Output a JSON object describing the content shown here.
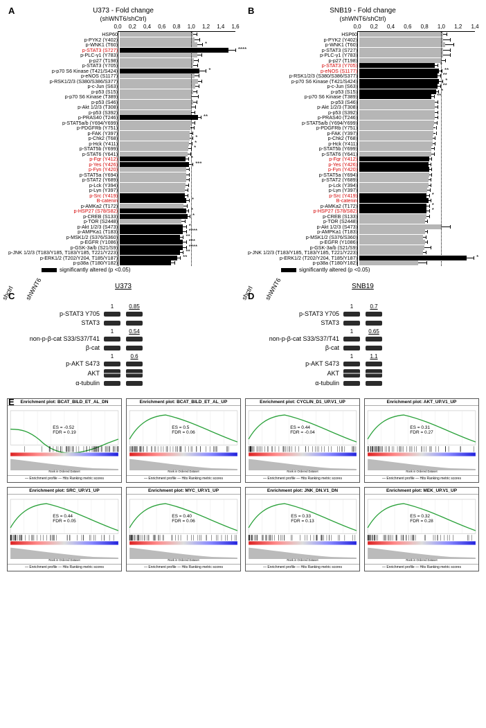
{
  "panel_labels": {
    "A": "A",
    "B": "B",
    "C": "C",
    "D": "D",
    "E": "E"
  },
  "chartA": {
    "title": "U373 - Fold change",
    "subtitle": "(shWNT6/shCtrl)",
    "xmax": 1.6,
    "xticks": [
      0.0,
      0.2,
      0.4,
      0.6,
      0.8,
      1.0,
      1.2,
      1.4,
      1.6
    ],
    "xtick_labels": [
      "0,0",
      "0,2",
      "0,4",
      "0,6",
      "0,8",
      "1,0",
      "1,2",
      "1,4",
      "1,6"
    ],
    "guideline_at": 1.0,
    "colors": {
      "sig": "#000000",
      "nonsig": "#b6b6b6"
    },
    "legend": "significantly altered (p <0.05)"
  },
  "chartB": {
    "title": "SNB19 - Fold change",
    "subtitle": "(shWNT6/shCtrl)",
    "xmax": 1.4,
    "xticks": [
      0.0,
      0.2,
      0.4,
      0.6,
      0.8,
      1.0,
      1.2,
      1.4
    ],
    "xtick_labels": [
      "0,0",
      "0,2",
      "0,4",
      "0,6",
      "0,8",
      "1,0",
      "1,2",
      "1,4"
    ],
    "guideline_at": 1.0,
    "colors": {
      "sig": "#000000",
      "nonsig": "#b6b6b6"
    },
    "legend": "significantly altered (p <0.05)"
  },
  "barsA": [
    {
      "label": "HSP60",
      "v": 1.0,
      "e": 0.04,
      "sig": false,
      "stars": ""
    },
    {
      "label": "p-PYK2 (Y402)",
      "v": 1.02,
      "e": 0.06,
      "sig": false,
      "stars": ""
    },
    {
      "label": "p-WNK1 (T60)",
      "v": 1.05,
      "e": 0.07,
      "sig": false,
      "stars": "*"
    },
    {
      "label": "p-STAT3 (S727)",
      "v": 1.48,
      "e": 0.09,
      "sig": true,
      "stars": "****",
      "red": true
    },
    {
      "label": "p-PLC-γ1 (Y783)",
      "v": 1.05,
      "e": 0.06,
      "sig": false,
      "stars": ""
    },
    {
      "label": "p-p27 (T198)",
      "v": 1.01,
      "e": 0.05,
      "sig": false,
      "stars": ""
    },
    {
      "label": "p-STAT3 (Y705)",
      "v": 1.0,
      "e": 0.05,
      "sig": false,
      "stars": ""
    },
    {
      "label": "p-p70 S6 Kinase (T421/S424)",
      "v": 1.08,
      "e": 0.09,
      "sig": true,
      "stars": "*"
    },
    {
      "label": "p-eNOS (S1177)",
      "v": 1.02,
      "e": 0.05,
      "sig": false,
      "stars": ""
    },
    {
      "label": "p-RSK1/2/3 (S380/S386/S377)",
      "v": 1.06,
      "e": 0.05,
      "sig": false,
      "stars": ""
    },
    {
      "label": "p-c-Jun (S63)",
      "v": 1.03,
      "e": 0.04,
      "sig": false,
      "stars": ""
    },
    {
      "label": "p-p53 (S15)",
      "v": 1.0,
      "e": 0.04,
      "sig": false,
      "stars": ""
    },
    {
      "label": "p-p70 S6 Kinase (T389)",
      "v": 0.98,
      "e": 0.08,
      "sig": false,
      "stars": ""
    },
    {
      "label": "p-p53 (S46)",
      "v": 1.0,
      "e": 0.04,
      "sig": false,
      "stars": ""
    },
    {
      "label": "p-Akt 1/2/3 (T308)",
      "v": 0.98,
      "e": 0.05,
      "sig": false,
      "stars": ""
    },
    {
      "label": "p-p53 (S392)",
      "v": 0.97,
      "e": 0.05,
      "sig": false,
      "stars": ""
    },
    {
      "label": "p-PRAS40 (T246)",
      "v": 1.06,
      "e": 0.04,
      "sig": true,
      "stars": "**"
    },
    {
      "label": "p-STAT5a/b (Y694/Y699)",
      "v": 0.97,
      "e": 0.05,
      "sig": false,
      "stars": ""
    },
    {
      "label": "p-PDGFRb (Y751)",
      "v": 0.96,
      "e": 0.05,
      "sig": false,
      "stars": ""
    },
    {
      "label": "p-FAK (Y397)",
      "v": 0.95,
      "e": 0.04,
      "sig": false,
      "stars": ""
    },
    {
      "label": "p-Chk2 (T68)",
      "v": 0.95,
      "e": 0.04,
      "sig": false,
      "stars": "*"
    },
    {
      "label": "p-Hck (Y411)",
      "v": 0.94,
      "e": 0.04,
      "sig": false,
      "stars": "*"
    },
    {
      "label": "p-STAT5b (Y699)",
      "v": 0.93,
      "e": 0.04,
      "sig": false,
      "stars": "*"
    },
    {
      "label": "p-STAT6 (Y641)",
      "v": 0.92,
      "e": 0.04,
      "sig": false,
      "stars": ""
    },
    {
      "label": "p-Fgr (Y412)",
      "v": 0.89,
      "e": 0.04,
      "sig": true,
      "stars": "*",
      "red": true
    },
    {
      "label": "p-Yes (Y426)",
      "v": 0.94,
      "e": 0.05,
      "sig": true,
      "stars": "***",
      "red": true
    },
    {
      "label": "p-Fyn (Y420)",
      "v": 0.9,
      "e": 0.04,
      "sig": false,
      "stars": "",
      "red": true
    },
    {
      "label": "p-STAT5a (Y694)",
      "v": 0.9,
      "e": 0.04,
      "sig": false,
      "stars": ""
    },
    {
      "label": "p-STAT2 (Y689)",
      "v": 0.9,
      "e": 0.04,
      "sig": false,
      "stars": ""
    },
    {
      "label": "p-Lck (Y394)",
      "v": 0.89,
      "e": 0.04,
      "sig": false,
      "stars": ""
    },
    {
      "label": "p-Lyn (Y397)",
      "v": 0.88,
      "e": 0.04,
      "sig": false,
      "stars": ""
    },
    {
      "label": "p-Src (Y419)",
      "v": 0.88,
      "e": 0.04,
      "sig": true,
      "stars": "",
      "red": true
    },
    {
      "label": "B-catenin",
      "v": 0.9,
      "e": 0.04,
      "sig": true,
      "stars": "*",
      "red": true
    },
    {
      "label": "p-AMKa2 (T172)",
      "v": 0.87,
      "e": 0.04,
      "sig": false,
      "stars": ""
    },
    {
      "label": "p-HSP27 (S78/S82)",
      "v": 0.9,
      "e": 0.03,
      "sig": true,
      "stars": "*",
      "red": true
    },
    {
      "label": "p-CREB (S133)",
      "v": 0.92,
      "e": 0.03,
      "sig": true,
      "stars": "*"
    },
    {
      "label": "p-TOR (S2448)",
      "v": 0.84,
      "e": 0.04,
      "sig": false,
      "stars": ""
    },
    {
      "label": "p-Akt 1/2/3 (S473)",
      "v": 0.86,
      "e": 0.04,
      "sig": true,
      "stars": "*"
    },
    {
      "label": "p-AMPKa1 (T183)",
      "v": 0.86,
      "e": 0.04,
      "sig": true,
      "stars": "****"
    },
    {
      "label": "p-MSK1/2 (S376/S360)",
      "v": 0.82,
      "e": 0.04,
      "sig": true,
      "stars": "**"
    },
    {
      "label": "p-EGFR (Y1086)",
      "v": 0.86,
      "e": 0.04,
      "sig": true,
      "stars": "***"
    },
    {
      "label": "p-GSK-3a/b (S21/S9)",
      "v": 0.86,
      "e": 0.04,
      "sig": true,
      "stars": "****"
    },
    {
      "label": "p-JNK 1/2/3 (T183/Y185, T183/Y185, T221/Y223)",
      "v": 0.82,
      "e": 0.04,
      "sig": true,
      "stars": "**"
    },
    {
      "label": "p-ERK1/2 (T202/Y204, T185/Y187)",
      "v": 0.78,
      "e": 0.04,
      "sig": true,
      "stars": "**"
    },
    {
      "label": "p-p38a (T180/Y182)",
      "v": 0.7,
      "e": 0.04,
      "sig": true,
      "stars": ""
    }
  ],
  "barsB": [
    {
      "label": "HSP60",
      "v": 1.0,
      "e": 0.04,
      "sig": false,
      "stars": ""
    },
    {
      "label": "p-PYK2 (Y402)",
      "v": 1.0,
      "e": 0.08,
      "sig": false,
      "stars": ""
    },
    {
      "label": "p-WNK1 (T60)",
      "v": 1.02,
      "e": 0.1,
      "sig": false,
      "stars": ""
    },
    {
      "label": "p-STAT3 (S727)",
      "v": 1.0,
      "e": 0.08,
      "sig": false,
      "stars": ""
    },
    {
      "label": "p-PLC-γ1 (Y783)",
      "v": 1.0,
      "e": 0.08,
      "sig": false,
      "stars": ""
    },
    {
      "label": "p-p27 (T198)",
      "v": 0.98,
      "e": 0.04,
      "sig": false,
      "stars": ""
    },
    {
      "label": "p-STAT3 (Y705)",
      "v": 0.9,
      "e": 0.03,
      "sig": true,
      "stars": "*",
      "red": true
    },
    {
      "label": "p-eNOS (S1177)",
      "v": 0.95,
      "e": 0.03,
      "sig": true,
      "stars": "**",
      "red": true
    },
    {
      "label": "p-RSK1/2/3 (S380/S386/S377)",
      "v": 0.93,
      "e": 0.03,
      "sig": true,
      "stars": "**"
    },
    {
      "label": "p-p70 S6 Kinase (T421/S424)",
      "v": 0.95,
      "e": 0.04,
      "sig": true,
      "stars": "*"
    },
    {
      "label": "p-c-Jun (S63)",
      "v": 0.93,
      "e": 0.03,
      "sig": true,
      "stars": "**"
    },
    {
      "label": "p-p53 (S15)",
      "v": 0.91,
      "e": 0.03,
      "sig": true,
      "stars": "*"
    },
    {
      "label": "p-p70 S6 Kinase (T389)",
      "v": 0.86,
      "e": 0.03,
      "sig": true,
      "stars": "**"
    },
    {
      "label": "p-p53 (S46)",
      "v": 0.9,
      "e": 0.03,
      "sig": false,
      "stars": ""
    },
    {
      "label": "p-Akt 1/2/3 (T308)",
      "v": 0.9,
      "e": 0.03,
      "sig": false,
      "stars": ""
    },
    {
      "label": "p-p53 (S392)",
      "v": 0.9,
      "e": 0.03,
      "sig": false,
      "stars": ""
    },
    {
      "label": "p-PRAS40 (T246)",
      "v": 0.9,
      "e": 0.03,
      "sig": false,
      "stars": ""
    },
    {
      "label": "p-STAT5a/b (Y694/Y699)",
      "v": 0.89,
      "e": 0.03,
      "sig": false,
      "stars": ""
    },
    {
      "label": "p-PDGFRb (Y751)",
      "v": 0.88,
      "e": 0.03,
      "sig": false,
      "stars": ""
    },
    {
      "label": "p-FAK (Y397)",
      "v": 0.88,
      "e": 0.03,
      "sig": false,
      "stars": ""
    },
    {
      "label": "p-Chk2 (T68)",
      "v": 0.87,
      "e": 0.03,
      "sig": false,
      "stars": ""
    },
    {
      "label": "p-Hck (Y411)",
      "v": 0.87,
      "e": 0.03,
      "sig": false,
      "stars": ""
    },
    {
      "label": "p-STAT5b (Y699)",
      "v": 0.86,
      "e": 0.03,
      "sig": false,
      "stars": ""
    },
    {
      "label": "p-STAT6 (Y641)",
      "v": 0.86,
      "e": 0.03,
      "sig": false,
      "stars": ""
    },
    {
      "label": "p-Fgr (Y412)",
      "v": 0.83,
      "e": 0.03,
      "sig": true,
      "stars": "",
      "red": true
    },
    {
      "label": "p-Yes (Y426)",
      "v": 0.82,
      "e": 0.03,
      "sig": true,
      "stars": "",
      "red": true
    },
    {
      "label": "p-Fyn (Y420)",
      "v": 0.83,
      "e": 0.03,
      "sig": true,
      "stars": "",
      "red": true
    },
    {
      "label": "p-STAT5a (Y694)",
      "v": 0.83,
      "e": 0.03,
      "sig": false,
      "stars": ""
    },
    {
      "label": "p-STAT2 (Y689)",
      "v": 0.82,
      "e": 0.03,
      "sig": false,
      "stars": ""
    },
    {
      "label": "p-Lck (Y394)",
      "v": 0.82,
      "e": 0.03,
      "sig": false,
      "stars": ""
    },
    {
      "label": "p-Lyn (Y397)",
      "v": 0.81,
      "e": 0.03,
      "sig": false,
      "stars": ""
    },
    {
      "label": "p-Src (Y419)",
      "v": 0.8,
      "e": 0.03,
      "sig": true,
      "stars": "*",
      "red": true
    },
    {
      "label": "B-catenin",
      "v": 0.82,
      "e": 0.03,
      "sig": true,
      "stars": "",
      "red": true
    },
    {
      "label": "p-AMKa2 (T172)",
      "v": 0.8,
      "e": 0.03,
      "sig": true,
      "stars": "*"
    },
    {
      "label": "p-HSP27 (S78/S82)",
      "v": 0.8,
      "e": 0.03,
      "sig": true,
      "stars": "*",
      "red": true
    },
    {
      "label": "p-CREB (S133)",
      "v": 0.8,
      "e": 0.03,
      "sig": false,
      "stars": ""
    },
    {
      "label": "p-TOR (S2448)",
      "v": 0.78,
      "e": 0.03,
      "sig": false,
      "stars": ""
    },
    {
      "label": "p-Akt 1/2/3 (S473)",
      "v": 0.98,
      "e": 0.1,
      "sig": false,
      "stars": ""
    },
    {
      "label": "p-AMPKa1 (T183)",
      "v": 0.78,
      "e": 0.03,
      "sig": false,
      "stars": ""
    },
    {
      "label": "p-MSK1/2 (S376/S360)",
      "v": 0.76,
      "e": 0.03,
      "sig": false,
      "stars": ""
    },
    {
      "label": "p-EGFR (Y1086)",
      "v": 0.78,
      "e": 0.03,
      "sig": false,
      "stars": ""
    },
    {
      "label": "p-GSK-3a/b (S21/S9)",
      "v": 0.77,
      "e": 0.08,
      "sig": false,
      "stars": ""
    },
    {
      "label": "p-JNK 1/2/3 (T183/Y185, T183/Y185, T221/Y223)",
      "v": 0.76,
      "e": 0.03,
      "sig": false,
      "stars": ""
    },
    {
      "label": "p-ERK1/2 (T202/Y204, T185/Y187)",
      "v": 1.28,
      "e": 0.08,
      "sig": true,
      "stars": "*"
    },
    {
      "label": "p-p38a (T180/Y182)",
      "v": 0.7,
      "e": 0.1,
      "sig": false,
      "stars": ""
    }
  ],
  "wb": {
    "C": {
      "cell": "U373",
      "lanes": [
        "shctrl",
        "shWNT6"
      ],
      "rows": [
        {
          "label": "p-STAT3 Y705",
          "ratio": [
            "1",
            "0.85"
          ],
          "double": false
        },
        {
          "label": "STAT3",
          "double": false
        },
        {
          "label": "non-p-β-cat S33/S37/T41",
          "ratio": [
            "1",
            "0.54"
          ],
          "double": false
        },
        {
          "label": "β-cat",
          "double": false
        },
        {
          "label": "p-AKT S473",
          "ratio": [
            "1",
            "0.6"
          ],
          "double": false
        },
        {
          "label": "AKT",
          "double": true
        },
        {
          "label": "α-tubulin",
          "double": false
        }
      ]
    },
    "D": {
      "cell": "SNB19",
      "lanes": [
        "shctrl",
        "shWNT6"
      ],
      "rows": [
        {
          "label": "p-STAT3 Y705",
          "ratio": [
            "1",
            "0.7"
          ],
          "double": false
        },
        {
          "label": "STAT3",
          "double": false
        },
        {
          "label": "non-p-β-cat S33/S37/T41",
          "ratio": [
            "1",
            "0.65"
          ],
          "double": false
        },
        {
          "label": "β-cat",
          "double": false
        },
        {
          "label": "p-AKT S473",
          "ratio": [
            "1",
            "1.1"
          ],
          "double": false
        },
        {
          "label": "AKT",
          "double": true
        },
        {
          "label": "α-tubulin",
          "double": false
        }
      ]
    }
  },
  "gsea": {
    "line_color": "#2aa13a",
    "hits_color": "#000000",
    "gradient": [
      "#d22",
      "#ff8888",
      "#dddddd",
      "#8888ff",
      "#22d"
    ],
    "plots": [
      {
        "title": "Enrichment plot: BCAT_BILD_ET_AL_DN",
        "es": "ES = -0.52",
        "fdr": "FDR = 0.19",
        "shape": "down"
      },
      {
        "title": "Enrichment plot: BCAT_BILD_ET_AL_UP",
        "es": "ES = 0.5",
        "fdr": "FDR = 0.06",
        "shape": "up"
      },
      {
        "title": "Enrichment plot: CYCLIN_D1_UP.V1_UP",
        "es": "ES = 0.44",
        "fdr": "FDR = -0.04",
        "shape": "up"
      },
      {
        "title": "Enrichment plot: AKT_UP.V1_UP",
        "es": "ES = 0.31",
        "fdr": "FDR = 0.27",
        "shape": "up"
      },
      {
        "title": "Enrichment plot: SRC_UP.V1_UP",
        "es": "ES = 0.44",
        "fdr": "FDR = 0.05",
        "shape": "up"
      },
      {
        "title": "Enrichment plot: MYC_UP.V1_UP",
        "es": "ES = 0.40",
        "fdr": "FDR = 0.06",
        "shape": "up"
      },
      {
        "title": "Enrichment plot: JNK_DN.V1_DN",
        "es": "ES = 0.33",
        "fdr": "FDR = 0.13",
        "shape": "up"
      },
      {
        "title": "Enrichment plot: MEK_UP.V1_UP",
        "es": "ES = 0.32",
        "fdr": "FDR = 0.28",
        "shape": "up"
      }
    ],
    "legend": "— Enrichment profile — Hits    Ranking metric scores",
    "xlabel": "Rank in Ordered Dataset",
    "xtick_max": "17,500"
  }
}
